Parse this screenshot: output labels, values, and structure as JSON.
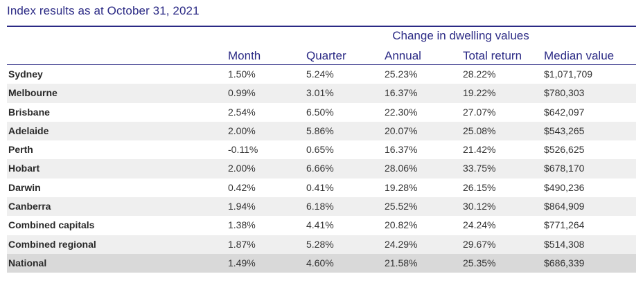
{
  "title": "Index results as at October 31, 2021",
  "group_header": "Change in dwelling values",
  "columns": {
    "month": "Month",
    "quarter": "Quarter",
    "annual": "Annual",
    "total_return": "Total return",
    "median_value": "Median value"
  },
  "rows": [
    {
      "name": "Sydney",
      "month": "1.50%",
      "quarter": "5.24%",
      "annual": "25.23%",
      "total_return": "28.22%",
      "median_value": "$1,071,709"
    },
    {
      "name": "Melbourne",
      "month": "0.99%",
      "quarter": "3.01%",
      "annual": "16.37%",
      "total_return": "19.22%",
      "median_value": "$780,303"
    },
    {
      "name": "Brisbane",
      "month": "2.54%",
      "quarter": "6.50%",
      "annual": "22.30%",
      "total_return": "27.07%",
      "median_value": "$642,097"
    },
    {
      "name": "Adelaide",
      "month": "2.00%",
      "quarter": "5.86%",
      "annual": "20.07%",
      "total_return": "25.08%",
      "median_value": "$543,265"
    },
    {
      "name": "Perth",
      "month": "-0.11%",
      "quarter": "0.65%",
      "annual": "16.37%",
      "total_return": "21.42%",
      "median_value": "$526,625"
    },
    {
      "name": "Hobart",
      "month": "2.00%",
      "quarter": "6.66%",
      "annual": "28.06%",
      "total_return": "33.75%",
      "median_value": "$678,170"
    },
    {
      "name": "Darwin",
      "month": "0.42%",
      "quarter": "0.41%",
      "annual": "19.28%",
      "total_return": "26.15%",
      "median_value": "$490,236"
    },
    {
      "name": "Canberra",
      "month": "1.94%",
      "quarter": "6.18%",
      "annual": "25.52%",
      "total_return": "30.12%",
      "median_value": "$864,909"
    },
    {
      "name": "Combined capitals",
      "month": "1.38%",
      "quarter": "4.41%",
      "annual": "20.82%",
      "total_return": "24.24%",
      "median_value": "$771,264"
    },
    {
      "name": "Combined regional",
      "month": "1.87%",
      "quarter": "5.28%",
      "annual": "24.29%",
      "total_return": "29.67%",
      "median_value": "$514,308"
    },
    {
      "name": "National",
      "month": "1.49%",
      "quarter": "4.60%",
      "annual": "21.58%",
      "total_return": "25.35%",
      "median_value": "$686,339"
    }
  ],
  "colors": {
    "accent": "#2b2a85",
    "stripe": "#efefef",
    "national_row": "#d9d9d9",
    "text": "#333333"
  }
}
